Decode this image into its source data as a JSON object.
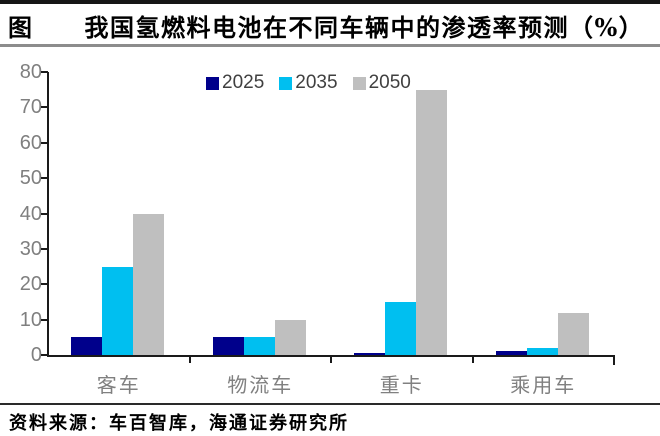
{
  "header": {
    "title": "图　　我国氢燃料电池在不同车辆中的渗透率预测（%）"
  },
  "footer": {
    "source": "资料来源：车百智库，海通证券研究所"
  },
  "chart_data": {
    "type": "bar",
    "title": "我国氢燃料电池在不同车辆中的渗透率预测（%）",
    "categories": [
      "客车",
      "物流车",
      "重卡",
      "乘用车"
    ],
    "series": [
      {
        "name": "2025",
        "color": "#00008B",
        "values": [
          5,
          5,
          0.5,
          1
        ]
      },
      {
        "name": "2035",
        "color": "#00BFF0",
        "values": [
          25,
          5,
          15,
          2
        ]
      },
      {
        "name": "2050",
        "color": "#BFBFBF",
        "values": [
          40,
          10,
          75,
          12
        ]
      }
    ],
    "ylim": [
      0,
      80
    ],
    "yticks": [
      0,
      10,
      20,
      30,
      40,
      50,
      60,
      70,
      80
    ],
    "xlabel": "",
    "ylabel": "",
    "legend_position": "top",
    "grid": false
  },
  "colors": {
    "axis": "#1a1a1a",
    "tick_label": "#7f7f7f",
    "legend_text": "#404040",
    "top_rule": "#161616",
    "title_rule": "#8c8c8c",
    "footer_rule": "#2a2a2a"
  }
}
